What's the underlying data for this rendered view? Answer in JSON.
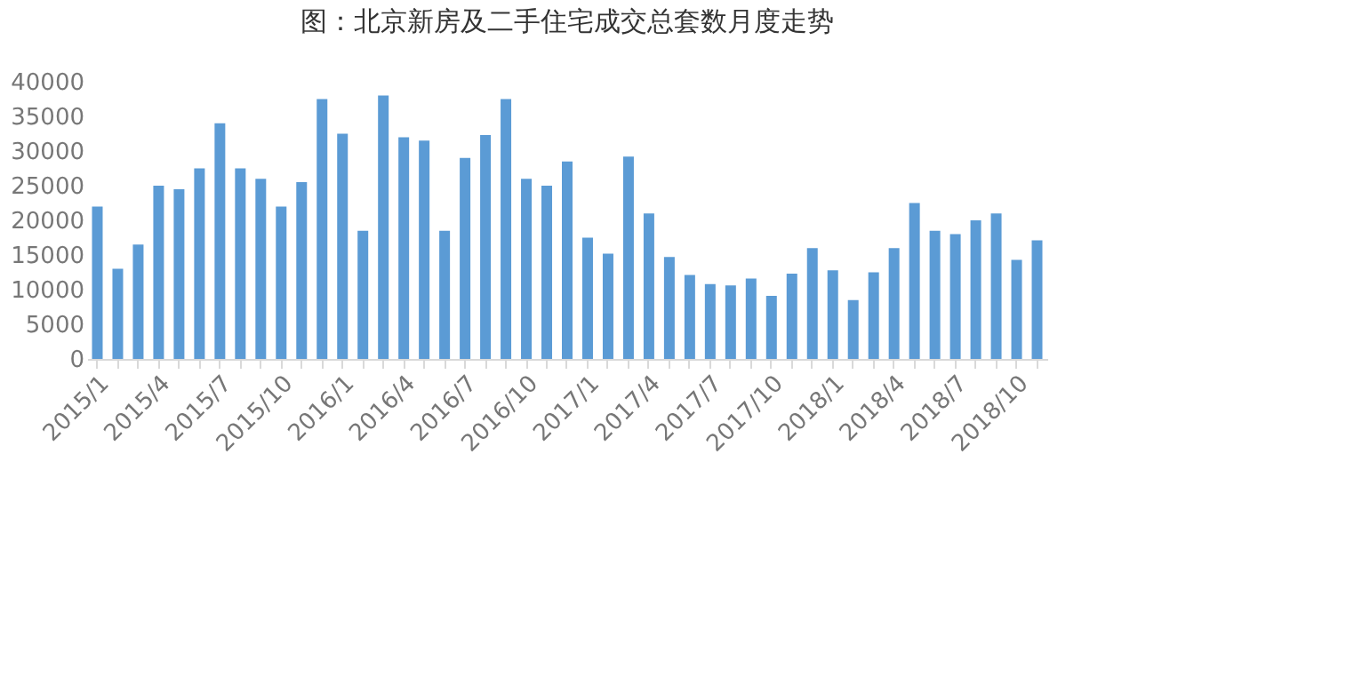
{
  "chart_data": {
    "type": "bar",
    "title": "图：北京新房及二手住宅成交总套数月度走势",
    "categories": [
      "2015/1",
      null,
      null,
      "2015/4",
      null,
      null,
      "2015/7",
      null,
      null,
      "2015/10",
      null,
      null,
      "2016/1",
      null,
      null,
      "2016/4",
      null,
      null,
      "2016/7",
      null,
      null,
      "2016/10",
      null,
      null,
      "2017/1",
      null,
      null,
      "2017/4",
      null,
      null,
      "2017/7",
      null,
      null,
      "2017/10",
      null,
      null,
      "2018/1",
      null,
      null,
      "2018/4",
      null,
      null,
      "2018/7",
      null,
      null,
      "2018/10",
      null
    ],
    "values": [
      22000,
      13000,
      16500,
      25000,
      24500,
      27500,
      34000,
      27500,
      26000,
      22000,
      25500,
      37500,
      32500,
      18500,
      38000,
      32000,
      31500,
      18500,
      29000,
      32300,
      37500,
      26000,
      25000,
      28500,
      17500,
      15200,
      29200,
      21000,
      14700,
      12100,
      10800,
      10600,
      11600,
      9100,
      12300,
      16000,
      12800,
      8500,
      12500,
      16000,
      22500,
      18500,
      18000,
      20000,
      21000,
      14300,
      17100
    ],
    "color": "#5b9bd5",
    "ylim": [
      0,
      40000
    ],
    "yticks": [
      0,
      5000,
      10000,
      15000,
      20000,
      25000,
      30000,
      35000,
      40000
    ],
    "grid": false
  }
}
